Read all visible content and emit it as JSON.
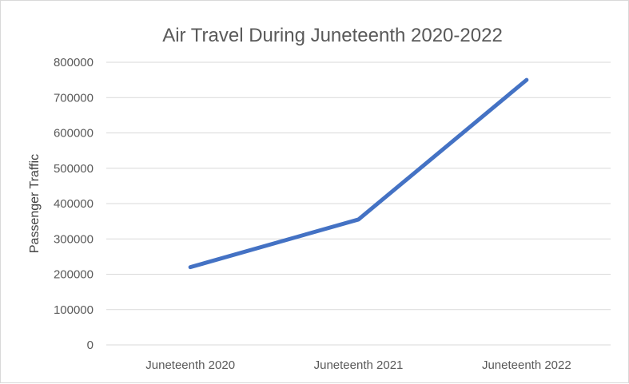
{
  "chart_data": {
    "type": "line",
    "title": "Air Travel During Juneteenth 2020-2022",
    "xlabel": "",
    "ylabel": "Passenger Traffic",
    "categories": [
      "Juneteenth 2020",
      "Juneteenth 2021",
      "Juneteenth 2022"
    ],
    "series": [
      {
        "values": [
          220000,
          355000,
          750000
        ]
      }
    ],
    "ylim": [
      0,
      800000
    ],
    "yticks": [
      "0",
      "100000",
      "200000",
      "300000",
      "400000",
      "500000",
      "600000",
      "700000",
      "800000"
    ],
    "grid": true,
    "legend": "none",
    "line_color": "#4472c4",
    "grid_color": "#d9d9d9"
  }
}
